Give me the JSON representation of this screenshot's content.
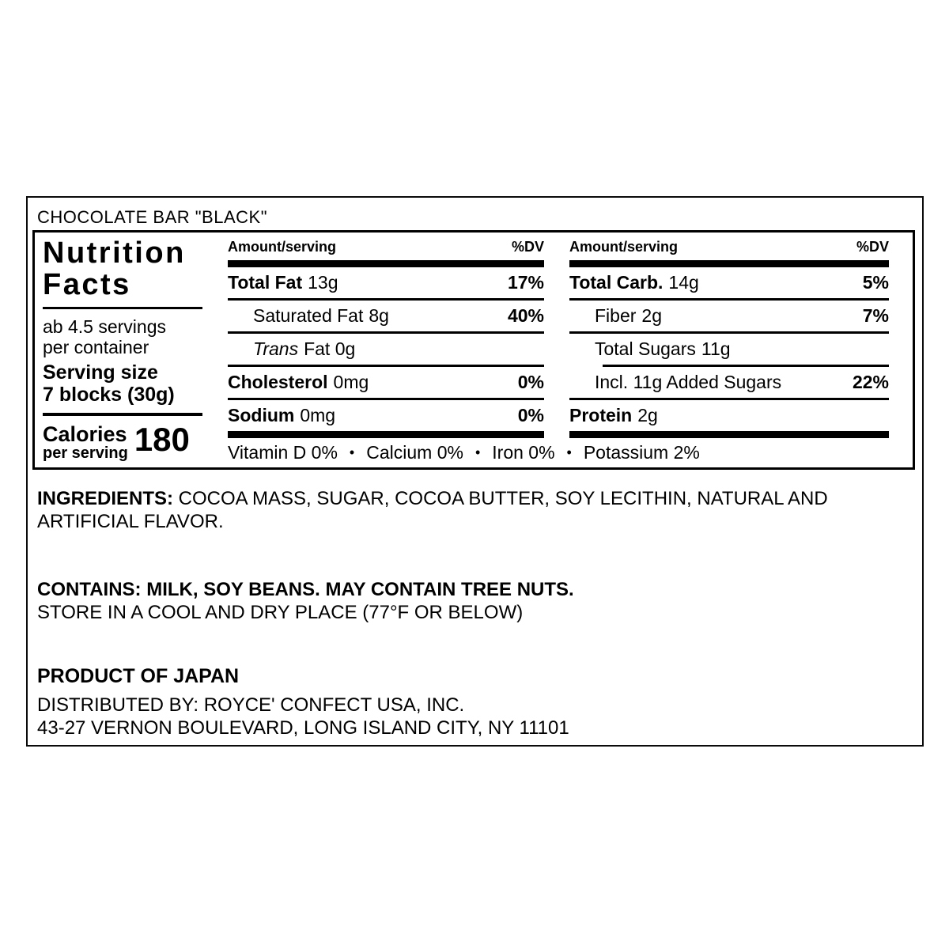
{
  "product_header": "CHOCOLATE BAR \"BLACK\"",
  "nutrition_panel": {
    "title": "Nutrition Facts",
    "servings_per_container": {
      "line1": "ab 4.5 servings",
      "line2": "per container"
    },
    "serving_size": {
      "label": "Serving size",
      "value": "7 blocks (30g)"
    },
    "calories": {
      "label": "Calories",
      "sublabel": "per serving",
      "value": "180"
    },
    "columns": [
      {
        "header": "Amount/serving",
        "dv_header": "%DV",
        "rows": [
          {
            "name": "Total Fat",
            "amount": "13g",
            "dv": "17%"
          },
          {
            "name": "Saturated Fat",
            "amount": "8g",
            "dv": "40%"
          },
          {
            "name": "Trans",
            "amount": "Fat 0g",
            "dv": ""
          },
          {
            "name": "Cholesterol",
            "amount": "0mg",
            "dv": "0%"
          },
          {
            "name": "Sodium",
            "amount": "0mg",
            "dv": "0%"
          }
        ]
      },
      {
        "header": "Amount/serving",
        "dv_header": "%DV",
        "rows": [
          {
            "name": "Total Carb.",
            "amount": "14g",
            "dv": "5%"
          },
          {
            "name": "Fiber",
            "amount": "2g",
            "dv": "7%"
          },
          {
            "name": "Total Sugars",
            "amount": "11g",
            "dv": ""
          },
          {
            "name": "Incl. 11g Added Sugars",
            "amount": "",
            "dv": "22%"
          },
          {
            "name": "Protein",
            "amount": "2g",
            "dv": ""
          }
        ]
      }
    ],
    "vitamins": {
      "items": [
        "Vitamin D 0%",
        "Calcium 0%",
        "Iron 0%",
        "Potassium 2%"
      ],
      "separator": "•"
    }
  },
  "info": {
    "ingredients_label": "INGREDIENTS:",
    "ingredients_text": " COCOA MASS, SUGAR, COCOA BUTTER, SOY LECITHIN, NATURAL AND ARTIFICIAL FLAVOR.",
    "contains_line": "CONTAINS: MILK, SOY BEANS. MAY CONTAIN TREE NUTS.",
    "storage_line": "STORE IN A COOL AND DRY PLACE (77°F OR BELOW)",
    "origin_line": "PRODUCT OF JAPAN",
    "distributor_line1": "DISTRIBUTED BY: ROYCE' CONFECT USA, INC.",
    "distributor_line2": "43-27 VERNON BOULEVARD, LONG ISLAND CITY, NY 11101"
  },
  "colors": {
    "text": "#000000",
    "background": "#ffffff",
    "rule": "#000000"
  }
}
